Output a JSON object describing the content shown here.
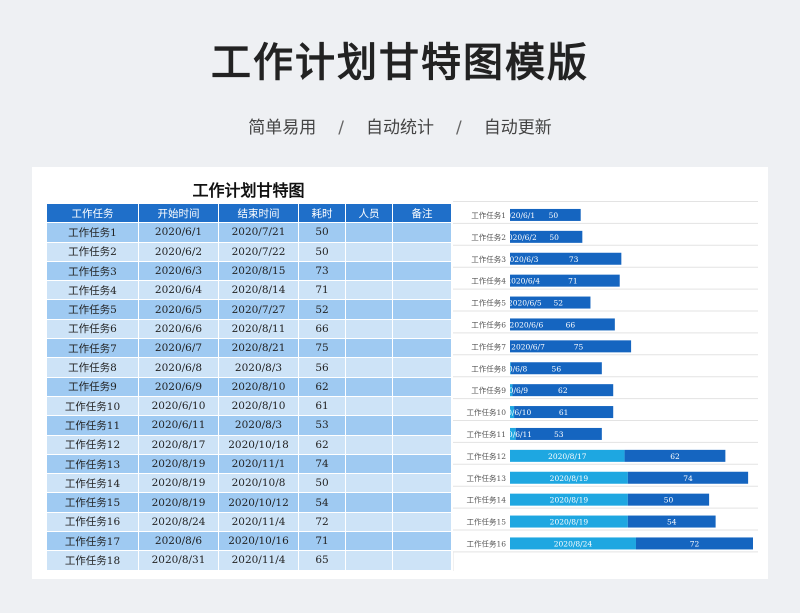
{
  "header": {
    "title": "工作计划甘特图模版",
    "features": [
      "简单易用",
      "自动统计",
      "自动更新"
    ],
    "separator": "/"
  },
  "sheet": {
    "title": "工作计划甘特图",
    "columns": [
      "工作任务",
      "开始时间",
      "结束时间",
      "耗时",
      "人员",
      "备注"
    ],
    "rows": [
      [
        "工作任务1",
        "2020/6/1",
        "2020/7/21",
        "50",
        "",
        ""
      ],
      [
        "工作任务2",
        "2020/6/2",
        "2020/7/22",
        "50",
        "",
        ""
      ],
      [
        "工作任务3",
        "2020/6/3",
        "2020/8/15",
        "73",
        "",
        ""
      ],
      [
        "工作任务4",
        "2020/6/4",
        "2020/8/14",
        "71",
        "",
        ""
      ],
      [
        "工作任务5",
        "2020/6/5",
        "2020/7/27",
        "52",
        "",
        ""
      ],
      [
        "工作任务6",
        "2020/6/6",
        "2020/8/11",
        "66",
        "",
        ""
      ],
      [
        "工作任务7",
        "2020/6/7",
        "2020/8/21",
        "75",
        "",
        ""
      ],
      [
        "工作任务8",
        "2020/6/8",
        "2020/8/3",
        "56",
        "",
        ""
      ],
      [
        "工作任务9",
        "2020/6/9",
        "2020/8/10",
        "62",
        "",
        ""
      ],
      [
        "工作任务10",
        "2020/6/10",
        "2020/8/10",
        "61",
        "",
        ""
      ],
      [
        "工作任务11",
        "2020/6/11",
        "2020/8/3",
        "53",
        "",
        ""
      ],
      [
        "工作任务12",
        "2020/8/17",
        "2020/10/18",
        "62",
        "",
        ""
      ],
      [
        "工作任务13",
        "2020/8/19",
        "2020/11/1",
        "74",
        "",
        ""
      ],
      [
        "工作任务14",
        "2020/8/19",
        "2020/10/8",
        "50",
        "",
        ""
      ],
      [
        "工作任务15",
        "2020/8/19",
        "2020/10/12",
        "54",
        "",
        ""
      ],
      [
        "工作任务16",
        "2020/8/24",
        "2020/11/4",
        "72",
        "",
        ""
      ],
      [
        "工作任务17",
        "2020/8/6",
        "2020/10/16",
        "71",
        "",
        ""
      ],
      [
        "工作任务18",
        "2020/8/31",
        "2020/11/4",
        "65",
        "",
        ""
      ]
    ]
  },
  "chart_data": {
    "type": "bar",
    "orientation": "horizontal",
    "stacked": true,
    "categories": [
      "工作任务1",
      "工作任务2",
      "工作任务3",
      "工作任务4",
      "工作任务5",
      "工作任务6",
      "工作任务7",
      "工作任务8",
      "工作任务9",
      "工作任务10",
      "工作任务11",
      "工作任务12",
      "工作任务13",
      "工作任务14",
      "工作任务15",
      "工作任务16"
    ],
    "series": [
      {
        "color": "#1ea7e1",
        "labels": [
          "2020/6/1",
          "2020/6/2",
          "2020/6/3",
          "2020/6/4",
          "2020/6/5",
          "2020/6/6",
          "2020/6/7",
          "2020/6/8",
          "2020/6/9",
          "2020/6/10",
          "2020/6/11",
          "2020/8/17",
          "2020/8/19",
          "2020/8/19",
          "2020/8/19",
          "2020/8/24"
        ],
        "values": [
          "2020-06-01",
          "2020-06-02",
          "2020-06-03",
          "2020-06-04",
          "2020-06-05",
          "2020-06-06",
          "2020-06-07",
          "2020-06-08",
          "2020-06-09",
          "2020-06-10",
          "2020-06-11",
          "2020-08-17",
          "2020-08-19",
          "2020-08-19",
          "2020-08-19",
          "2020-08-24"
        ]
      },
      {
        "color": "#1565c0",
        "values": [
          50,
          50,
          73,
          71,
          52,
          66,
          75,
          56,
          62,
          61,
          53,
          62,
          74,
          50,
          54,
          72
        ]
      }
    ],
    "grid": true
  }
}
